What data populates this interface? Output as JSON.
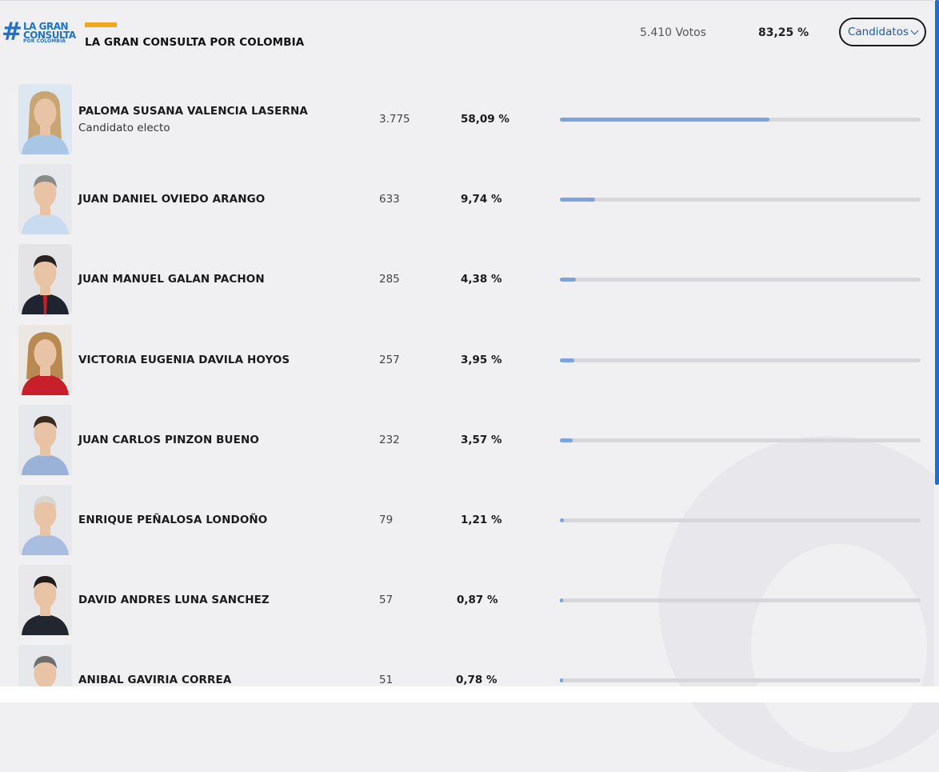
{
  "header": {
    "logo_hash": "#",
    "logo_line1": "LA GRAN",
    "logo_line2": "CONSULTA",
    "logo_line3": "POR COLOMBIA",
    "title": "LA GRAN CONSULTA POR COLOMBIA",
    "total_votes": "5.410 Votos",
    "total_pct": "83,25 %",
    "candidates_button": "Candidatos"
  },
  "colors": {
    "accent": "#f2a81d",
    "brand_blue": "#1e72c8",
    "bar_fill": "#7ca4dc",
    "bar_track": "#d7d7db"
  },
  "candidates": [
    {
      "name": "PALOMA SUSANA VALENCIA LASERNA",
      "status": "Candidato electo",
      "votes": "3.775",
      "pct": "58,09 %",
      "share": 58.09,
      "photo": "woman-blonde",
      "bg": "#dde7f2"
    },
    {
      "name": "JUAN DANIEL OVIEDO ARANGO",
      "status": "",
      "votes": "633",
      "pct": "9,74 %",
      "share": 9.74,
      "photo": "man-gray-hair-light-shirt",
      "bg": "#e6e8ec"
    },
    {
      "name": "JUAN MANUEL GALAN PACHON",
      "status": "",
      "votes": "285",
      "pct": "4,38 %",
      "share": 4.38,
      "photo": "man-dark-suit-red-tie",
      "bg": "#e4e4e6"
    },
    {
      "name": "VICTORIA EUGENIA DAVILA HOYOS",
      "status": "",
      "votes": "257",
      "pct": "3,95 %",
      "share": 3.95,
      "photo": "woman-red-top",
      "bg": "#ece7e2"
    },
    {
      "name": "JUAN CARLOS PINZON BUENO",
      "status": "",
      "votes": "232",
      "pct": "3,57 %",
      "share": 3.57,
      "photo": "man-blue-shirt",
      "bg": "#e6e8ec"
    },
    {
      "name": "ENRIQUE PEÑALOSA LONDOÑO",
      "status": "",
      "votes": "79",
      "pct": "1,21 %",
      "share": 1.21,
      "photo": "man-white-hair-blue-shirt",
      "bg": "#e6e8ec"
    },
    {
      "name": "DAVID ANDRES LUNA SANCHEZ",
      "status": "",
      "votes": "57",
      "pct": "0,87 %",
      "share": 0.87,
      "photo": "man-dark-suit",
      "bg": "#e8e8ea"
    },
    {
      "name": "ANIBAL GAVIRIA CORREA",
      "status": "",
      "votes": "51",
      "pct": "0,78 %",
      "share": 0.78,
      "photo": "man-gray-hair",
      "bg": "#e6e8ec"
    }
  ]
}
